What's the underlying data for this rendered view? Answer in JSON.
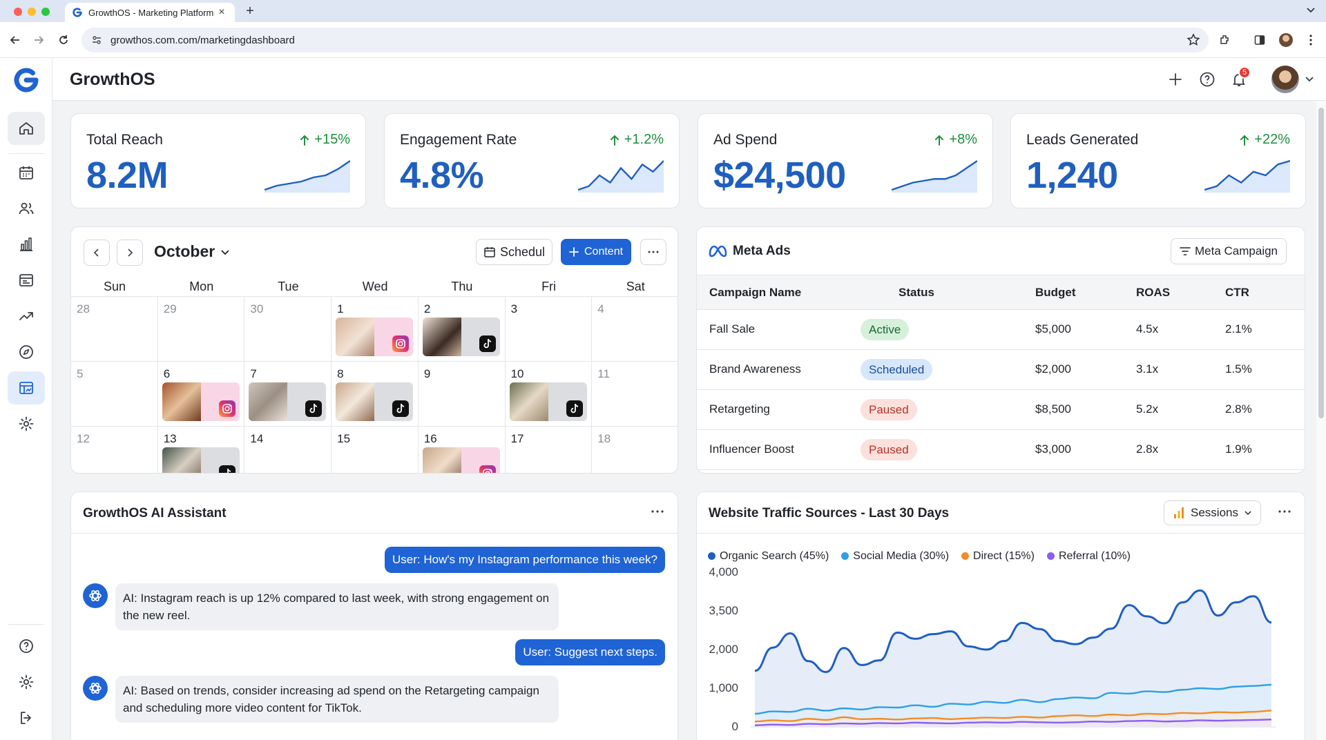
{
  "browser": {
    "tab_title": "GrowthOS - Marketing Platform",
    "url": "growthos.com.com/marketingdashboard"
  },
  "app": {
    "brand": "GrowthOS",
    "notification_count": "5"
  },
  "sidebar": {
    "items": [
      {
        "icon": "home-icon"
      },
      {
        "icon": "calendar-icon"
      },
      {
        "icon": "users-icon"
      },
      {
        "icon": "bar-chart-icon"
      },
      {
        "icon": "browser-window-icon"
      },
      {
        "icon": "trend-icon"
      },
      {
        "icon": "compass-icon"
      },
      {
        "icon": "analytics-board-icon"
      },
      {
        "icon": "settings-icon"
      }
    ],
    "bottom": [
      {
        "icon": "help-icon"
      },
      {
        "icon": "settings-icon"
      },
      {
        "icon": "logout-icon"
      }
    ]
  },
  "kpis": [
    {
      "label": "Total Reach",
      "value": "8.2M",
      "delta": "+15%",
      "spark": [
        2,
        3,
        3.5,
        4,
        5,
        5.5,
        7,
        9
      ]
    },
    {
      "label": "Engagement Rate",
      "value": "4.8%",
      "delta": "+1.2%",
      "spark": [
        2,
        3,
        6,
        4,
        8,
        5,
        9,
        7,
        10
      ]
    },
    {
      "label": "Ad Spend",
      "value": "$24,500",
      "delta": "+8%",
      "spark": [
        2,
        3,
        4,
        4.5,
        5,
        5,
        6,
        8,
        10
      ]
    },
    {
      "label": "Leads Generated",
      "value": "1,240",
      "delta": "+22%",
      "spark": [
        2,
        3,
        6,
        4,
        7,
        6,
        9,
        10
      ]
    }
  ],
  "calendar": {
    "month": "October",
    "schedule_label": "Schedul",
    "content_label": "Content",
    "weekdays": [
      "Sun",
      "Mon",
      "Tue",
      "Wed",
      "Thu",
      "Fri",
      "Sat"
    ],
    "weeks": [
      [
        {
          "day": "28",
          "muted": true
        },
        {
          "day": "29",
          "muted": true
        },
        {
          "day": "30",
          "muted": true
        },
        {
          "day": "1",
          "post": "instagram"
        },
        {
          "day": "2",
          "post": "tiktok"
        },
        {
          "day": "3"
        },
        {
          "day": "4",
          "muted": true
        }
      ],
      [
        {
          "day": "5",
          "muted": true
        },
        {
          "day": "6",
          "post": "instagram"
        },
        {
          "day": "7",
          "post": "tiktok"
        },
        {
          "day": "8",
          "post": "tiktok"
        },
        {
          "day": "9"
        },
        {
          "day": "10",
          "post": "tiktok"
        },
        {
          "day": "11",
          "muted": true
        }
      ],
      [
        {
          "day": "12",
          "muted": true
        },
        {
          "day": "13",
          "post": "tiktok"
        },
        {
          "day": "14"
        },
        {
          "day": "15"
        },
        {
          "day": "16",
          "post": "instagram"
        },
        {
          "day": "17"
        },
        {
          "day": "18",
          "muted": true
        }
      ]
    ]
  },
  "meta_ads": {
    "title": "Meta Ads",
    "filter_label": "Meta Campaign",
    "columns": [
      "Campaign Name",
      "Status",
      "Budget",
      "ROAS",
      "CTR"
    ],
    "rows": [
      {
        "name": "Fall Sale",
        "status": "Active",
        "budget": "$5,000",
        "roas": "4.5x",
        "ctr": "2.1%"
      },
      {
        "name": "Brand Awareness",
        "status": "Scheduled",
        "budget": "$2,000",
        "roas": "3.1x",
        "ctr": "1.5%"
      },
      {
        "name": "Retargeting",
        "status": "Paused",
        "budget": "$8,500",
        "roas": "5.2x",
        "ctr": "2.8%"
      },
      {
        "name": "Influencer Boost",
        "status": "Paused",
        "budget": "$3,000",
        "roas": "2.8x",
        "ctr": "1.9%"
      }
    ],
    "status_colors": {
      "Active": "#d7f0dc",
      "Scheduled": "#d6e6fb",
      "Paused": "#fbe0dc"
    }
  },
  "assistant": {
    "title": "GrowthOS AI Assistant",
    "messages": [
      {
        "role": "user",
        "text": "User: How's my Instagram performance this week?"
      },
      {
        "role": "ai",
        "text": "AI: Instagram reach is up 12% compared to last week, with strong engagement on the new reel."
      },
      {
        "role": "user",
        "text": "User: Suggest next steps."
      },
      {
        "role": "ai",
        "text": "AI: Based on trends, consider increasing ad spend on the Retargeting campaign and scheduling more video content for TikTok."
      }
    ]
  },
  "traffic": {
    "title": "Website Traffic Sources - Last 30 Days",
    "metric_label": "Sessions"
  },
  "chart_data": {
    "type": "area",
    "title": "Website Traffic Sources - Last 30 Days",
    "y_ticks": [
      "4,000",
      "3,500",
      "2,000",
      "1,000",
      "0"
    ],
    "legend_position": "top-left",
    "grid": false,
    "series": [
      {
        "name": "Organic Search (45%)",
        "color": "#1f5fbf",
        "values": [
          1450,
          2050,
          2420,
          1700,
          1420,
          2040,
          1600,
          1720,
          2440,
          2280,
          2400,
          2470,
          2080,
          2000,
          2220,
          2690,
          2530,
          2220,
          2140,
          2310,
          2540,
          3150,
          2860,
          2680,
          3220,
          3530,
          2880,
          3220,
          3380,
          2700
        ]
      },
      {
        "name": "Social Media (30%)",
        "color": "#2f9fe3",
        "values": [
          340,
          400,
          390,
          470,
          420,
          480,
          450,
          510,
          500,
          560,
          520,
          600,
          580,
          650,
          620,
          700,
          640,
          720,
          760,
          740,
          880,
          860,
          920,
          900,
          960,
          1000,
          980,
          1040,
          1060,
          1090
        ]
      },
      {
        "name": "Direct (15%)",
        "color": "#f28c28",
        "values": [
          140,
          170,
          150,
          210,
          180,
          250,
          200,
          210,
          190,
          220,
          230,
          200,
          220,
          240,
          230,
          260,
          240,
          280,
          300,
          280,
          320,
          300,
          340,
          330,
          360,
          350,
          380,
          370,
          390,
          420
        ]
      },
      {
        "name": "Referral (10%)",
        "color": "#8b5cf6",
        "values": [
          40,
          60,
          50,
          80,
          70,
          90,
          80,
          100,
          90,
          110,
          100,
          90,
          110,
          120,
          110,
          130,
          120,
          110,
          120,
          140,
          130,
          150,
          160,
          140,
          150,
          170,
          160,
          170,
          180,
          190
        ]
      }
    ]
  }
}
